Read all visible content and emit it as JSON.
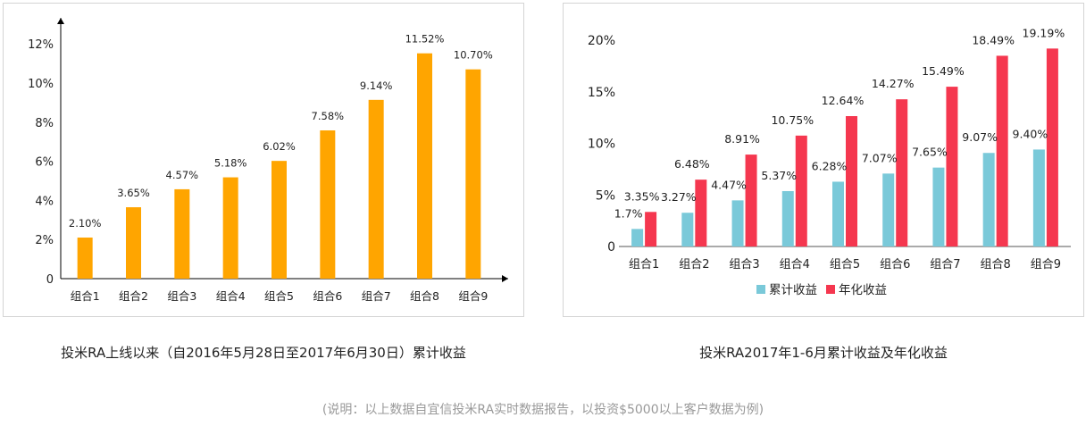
{
  "chart_data": [
    {
      "type": "bar",
      "title": "投米RA上线以来（自2016年5月28日至2017年6月30日）累计收益",
      "categories": [
        "组合1",
        "组合2",
        "组合3",
        "组合4",
        "组合5",
        "组合6",
        "组合7",
        "组合8",
        "组合9"
      ],
      "values": [
        2.1,
        3.65,
        4.57,
        5.18,
        6.02,
        7.58,
        9.14,
        11.52,
        10.7
      ],
      "value_labels": [
        "2.10%",
        "3.65%",
        "4.57%",
        "5.18%",
        "6.02%",
        "7.58%",
        "9.14%",
        "11.52%",
        "10.70%"
      ],
      "yticks": [
        "0",
        "2%",
        "4%",
        "6%",
        "8%",
        "10%",
        "12%"
      ],
      "ylim": [
        0,
        13
      ],
      "color": "#FFA500",
      "legend": "none",
      "grid": false
    },
    {
      "type": "bar",
      "title": "投米RA2017年1-6月累计收益及年化收益",
      "categories": [
        "组合1",
        "组合2",
        "组合3",
        "组合4",
        "组合5",
        "组合6",
        "组合7",
        "组合8",
        "组合9"
      ],
      "series": [
        {
          "name": "累计收益",
          "color": "#7AC9D9",
          "values": [
            1.7,
            3.27,
            4.47,
            5.37,
            6.28,
            7.07,
            7.65,
            9.07,
            9.4
          ],
          "labels": [
            "1.7%",
            "3.27%",
            "4.47%",
            "5.37%",
            "6.28%",
            "7.07%",
            "7.65%",
            "9.07%",
            "9.40%"
          ]
        },
        {
          "name": "年化收益",
          "color": "#F5374F",
          "values": [
            3.35,
            6.48,
            8.91,
            10.75,
            12.64,
            14.27,
            15.49,
            18.49,
            19.19
          ],
          "labels": [
            "3.35%",
            "6.48%",
            "8.91%",
            "10.75%",
            "12.64%",
            "14.27%",
            "15.49%",
            "18.49%",
            "19.19%"
          ]
        }
      ],
      "yticks": [
        "0",
        "5%",
        "10%",
        "15%",
        "20%"
      ],
      "ylim": [
        0,
        20
      ],
      "legend": "bottom",
      "grid": false
    }
  ],
  "footnote": "(说明：以上数据自宜信投米RA实时数据报告，以投资$5000以上客户数据为例)"
}
